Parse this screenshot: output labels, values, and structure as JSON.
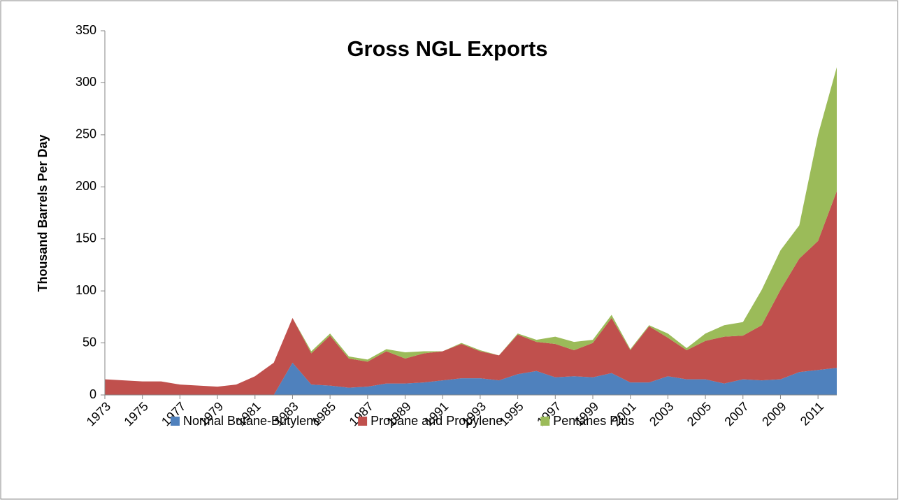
{
  "chart_data": {
    "type": "stacked_area",
    "title": "Gross NGL Exports",
    "y_label": "Thousand Barrels Per Day",
    "x": [
      1973,
      1974,
      1975,
      1976,
      1977,
      1978,
      1979,
      1980,
      1981,
      1982,
      1983,
      1984,
      1985,
      1986,
      1987,
      1988,
      1989,
      1990,
      1991,
      1992,
      1993,
      1994,
      1995,
      1996,
      1997,
      1998,
      1999,
      2000,
      2001,
      2002,
      2003,
      2004,
      2005,
      2006,
      2007,
      2008,
      2009,
      2010,
      2011,
      2012
    ],
    "xlim": [
      1973,
      2012
    ],
    "xticks": [
      1973,
      1975,
      1977,
      1979,
      1981,
      1983,
      1985,
      1987,
      1989,
      1991,
      1993,
      1995,
      1997,
      1999,
      2001,
      2003,
      2005,
      2007,
      2009,
      2011
    ],
    "ylim": [
      0,
      350
    ],
    "yticks": [
      0,
      50,
      100,
      150,
      200,
      250,
      300,
      350
    ],
    "grid": false,
    "legend": "bottom",
    "series": [
      {
        "name": "Normal Butane-Butylene",
        "color": "#4f81bd",
        "values": [
          0,
          0,
          0,
          0,
          0,
          0,
          0,
          0,
          0,
          0,
          31,
          10,
          9,
          7,
          8,
          11,
          11,
          12,
          14,
          16,
          16,
          14,
          20,
          23,
          17,
          18,
          17,
          21,
          12,
          12,
          18,
          15,
          15,
          11,
          15,
          14,
          15,
          22,
          24,
          26
        ]
      },
      {
        "name": "Propane and Propylene",
        "color": "#c0504d",
        "values": [
          15,
          14,
          13,
          13,
          10,
          9,
          8,
          10,
          18,
          31,
          43,
          30,
          48,
          28,
          24,
          31,
          24,
          28,
          28,
          33,
          26,
          24,
          38,
          28,
          32,
          25,
          33,
          53,
          31,
          54,
          37,
          28,
          37,
          45,
          42,
          53,
          86,
          109,
          124,
          170
        ]
      },
      {
        "name": "Pentanes Plus",
        "color": "#9bbb59",
        "values": [
          0,
          0,
          0,
          0,
          0,
          0,
          0,
          0,
          0,
          0,
          0,
          2,
          2,
          2,
          2,
          2,
          6,
          2,
          0,
          1,
          1,
          0,
          1,
          2,
          7,
          8,
          3,
          3,
          1,
          1,
          4,
          2,
          7,
          11,
          13,
          34,
          38,
          32,
          102,
          119
        ]
      }
    ]
  }
}
